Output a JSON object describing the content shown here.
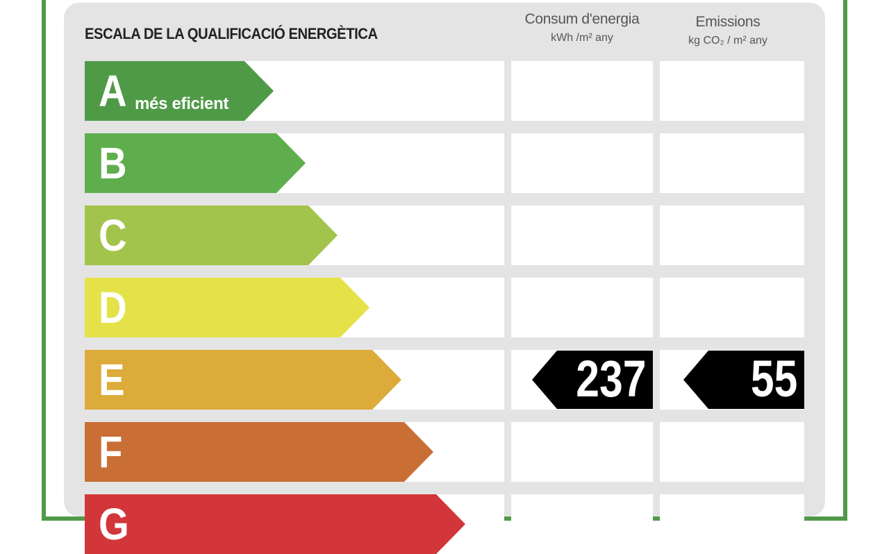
{
  "label": {
    "title": "ESCALA DE LA QUALIFICACIÓ ENERGÈTICA",
    "energy_column": {
      "heading": "Consum d'energia",
      "unit": "kWh /m² any"
    },
    "emissions_column": {
      "heading": "Emissions",
      "unit": "kg CO₂ / m² any"
    },
    "classes": [
      {
        "letter": "A",
        "sublabel": "més eficient",
        "color": "#4f9a47"
      },
      {
        "letter": "B",
        "sublabel": "",
        "color": "#5fae4d"
      },
      {
        "letter": "C",
        "sublabel": "",
        "color": "#a2c44c"
      },
      {
        "letter": "D",
        "sublabel": "",
        "color": "#e5e249"
      },
      {
        "letter": "E",
        "sublabel": "",
        "color": "#dcab3a"
      },
      {
        "letter": "F",
        "sublabel": "",
        "color": "#c96f36"
      },
      {
        "letter": "G",
        "sublabel": "",
        "color": "#d2363a"
      }
    ],
    "rating": {
      "class": "E",
      "energy_value": "237",
      "emissions_value": "55"
    },
    "colors": {
      "frame": "#4f9a47",
      "panel": "#e4e4e4",
      "tag": "#000000"
    }
  }
}
